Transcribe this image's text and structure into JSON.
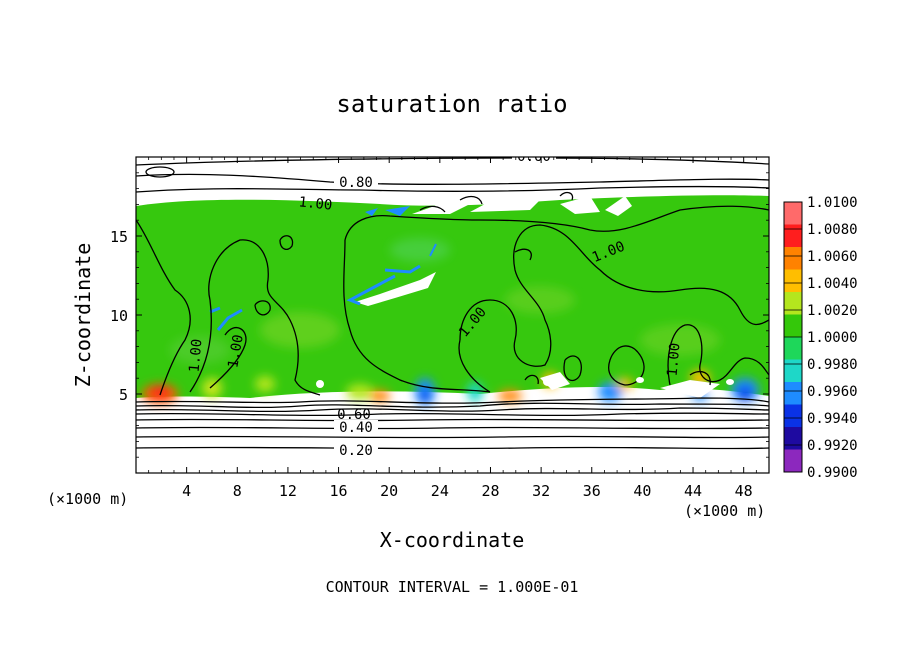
{
  "chart_data": {
    "type": "heatmap",
    "title": "saturation ratio",
    "xlabel": "X-coordinate",
    "ylabel": "Z-coordinate",
    "x_unit": "(×1000 m)",
    "x_unit_right": "(×1000 m)",
    "xlim": [
      0,
      50
    ],
    "ylim": [
      0,
      20
    ],
    "xticks": [
      4,
      8,
      12,
      16,
      20,
      24,
      28,
      32,
      36,
      40,
      44,
      48
    ],
    "yticks": [
      5,
      10,
      15
    ],
    "colorbar": {
      "labels": [
        "1.0100",
        "1.0080",
        "1.0060",
        "1.0040",
        "1.0020",
        "1.0000",
        "0.9980",
        "0.9960",
        "0.9940",
        "0.9920",
        "0.9900"
      ],
      "colors": [
        "#ff6a6a",
        "#ff1e1e",
        "#ff8200",
        "#ffbe00",
        "#b4e61e",
        "#34c80a",
        "#1ed75a",
        "#1ed7c8",
        "#1e8cff",
        "#0a32e6",
        "#1e0aa0",
        "#8c28be"
      ]
    },
    "contour_labels": [
      "0.60",
      "0.80",
      "1.00",
      "1.00",
      "1.00",
      "1.00",
      "1.00",
      "1.00",
      "0.60",
      "0.40",
      "0.20"
    ],
    "note": "CONTOUR INTERVAL = 1.000E-01"
  }
}
